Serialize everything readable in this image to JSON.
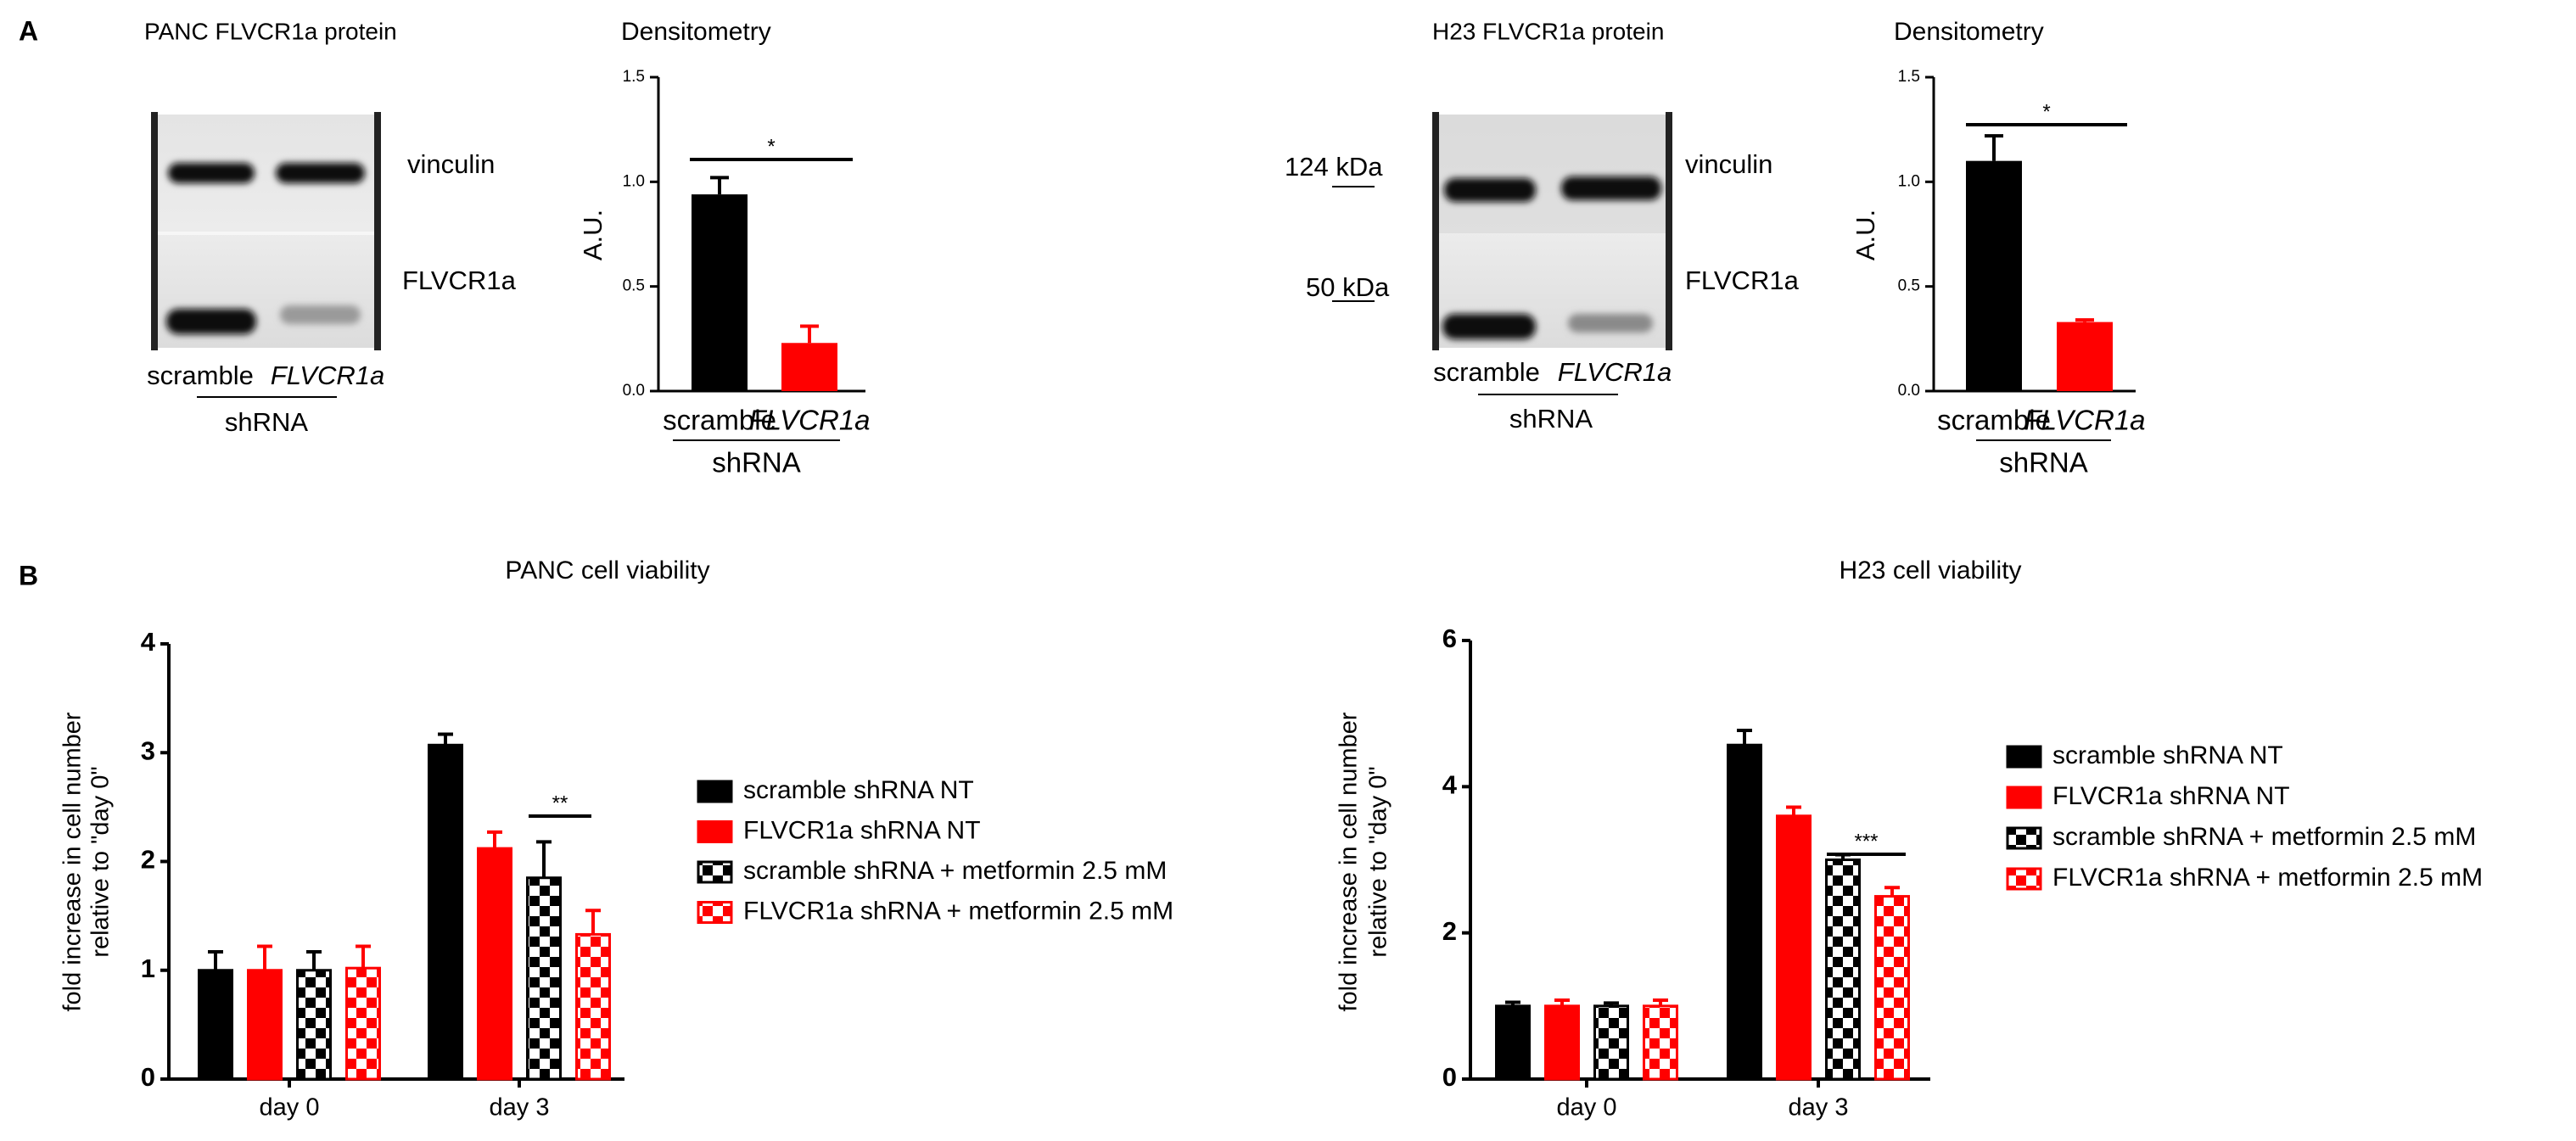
{
  "panel_labels": [
    "A",
    "B"
  ],
  "blots": [
    {
      "title": "PANC FLVCR1a protein",
      "bands": [
        "vinculin",
        "FLVCR1a"
      ],
      "lanes": [
        "scramble",
        "FLVCR1a"
      ],
      "group_label": "shRNA"
    },
    {
      "title": "H23 FLVCR1a protein",
      "bands": [
        "vinculin",
        "FLVCR1a"
      ],
      "markers": [
        "124 kDa",
        "50 kDa"
      ],
      "lanes": [
        "scramble",
        "FLVCR1a"
      ],
      "group_label": "shRNA"
    }
  ],
  "chart_data": [
    {
      "type": "bar",
      "title": "Densitometry",
      "ylabel": [
        "A.U."
      ],
      "categories": [
        "scramble",
        "FLVCR1a"
      ],
      "group_label": "shRNA",
      "values": [
        0.94,
        0.23
      ],
      "errors": [
        0.08,
        0.08
      ],
      "colors": [
        "#000000",
        "#ff0000"
      ],
      "significance": "*",
      "ylim": [
        0,
        1.5
      ],
      "yticks": [
        {
          "value": 0,
          "label": "0.0"
        },
        {
          "value": 0.5,
          "label": "0.5"
        },
        {
          "value": 1,
          "label": "1.0"
        },
        {
          "value": 1.5,
          "label": "1.5"
        }
      ]
    },
    {
      "type": "bar",
      "title": "Densitometry",
      "ylabel": [
        "A.U."
      ],
      "categories": [
        "scramble",
        "FLVCR1a"
      ],
      "group_label": "shRNA",
      "values": [
        1.1,
        0.33
      ],
      "errors": [
        0.12,
        0.01
      ],
      "colors": [
        "#000000",
        "#ff0000"
      ],
      "significance": "*",
      "ylim": [
        0,
        1.5
      ],
      "yticks": [
        {
          "value": 0,
          "label": "0.0"
        },
        {
          "value": 0.5,
          "label": "0.5"
        },
        {
          "value": 1,
          "label": "1.0"
        },
        {
          "value": 1.5,
          "label": "1.5"
        }
      ]
    },
    {
      "type": "bar",
      "title": "PANC cell viability",
      "ylabel": [
        "fold increase in cell number",
        "relative to \"day 0\""
      ],
      "categories": [
        "day 0",
        "day 3"
      ],
      "significance": "**",
      "series": [
        {
          "name": "scramble shRNA NT",
          "color": "#000000",
          "pattern": "solid",
          "values": [
            1.0,
            3.07
          ],
          "errors": [
            0.17,
            0.1
          ]
        },
        {
          "name": "FLVCR1a shRNA NT",
          "color": "#ff0000",
          "pattern": "solid",
          "values": [
            1.0,
            2.12
          ],
          "errors": [
            0.22,
            0.15
          ]
        },
        {
          "name": "scramble shRNA + metformin 2.5 mM",
          "color": "#000000",
          "pattern": "checkered",
          "values": [
            1.0,
            1.85
          ],
          "errors": [
            0.17,
            0.33
          ]
        },
        {
          "name": "FLVCR1a shRNA + metformin 2.5 mM",
          "color": "#ff0000",
          "pattern": "checkered",
          "values": [
            1.02,
            1.33
          ],
          "errors": [
            0.2,
            0.22
          ]
        }
      ],
      "ylim": [
        0,
        4
      ],
      "yticks": [
        0,
        1,
        2,
        3,
        4
      ]
    },
    {
      "type": "bar",
      "title": "H23 cell viability",
      "ylabel": [
        "fold increase in cell number",
        "relative to \"day 0\""
      ],
      "categories": [
        "day 0",
        "day 3"
      ],
      "significance": "***",
      "series": [
        {
          "name": "scramble shRNA NT",
          "color": "#000000",
          "pattern": "solid",
          "values": [
            1.0,
            4.57
          ],
          "errors": [
            0.05,
            0.2
          ]
        },
        {
          "name": "FLVCR1a shRNA NT",
          "color": "#ff0000",
          "pattern": "solid",
          "values": [
            1.0,
            3.6
          ],
          "errors": [
            0.08,
            0.12
          ]
        },
        {
          "name": "scramble shRNA + metformin 2.5 mM",
          "color": "#000000",
          "pattern": "checkered",
          "values": [
            1.0,
            3.0
          ],
          "errors": [
            0.04,
            0.07
          ]
        },
        {
          "name": "FLVCR1a shRNA + metformin 2.5 mM",
          "color": "#ff0000",
          "pattern": "checkered",
          "values": [
            1.0,
            2.5
          ],
          "errors": [
            0.08,
            0.12
          ]
        }
      ],
      "ylim": [
        0,
        6
      ],
      "yticks": [
        0,
        2,
        4,
        6
      ]
    }
  ]
}
